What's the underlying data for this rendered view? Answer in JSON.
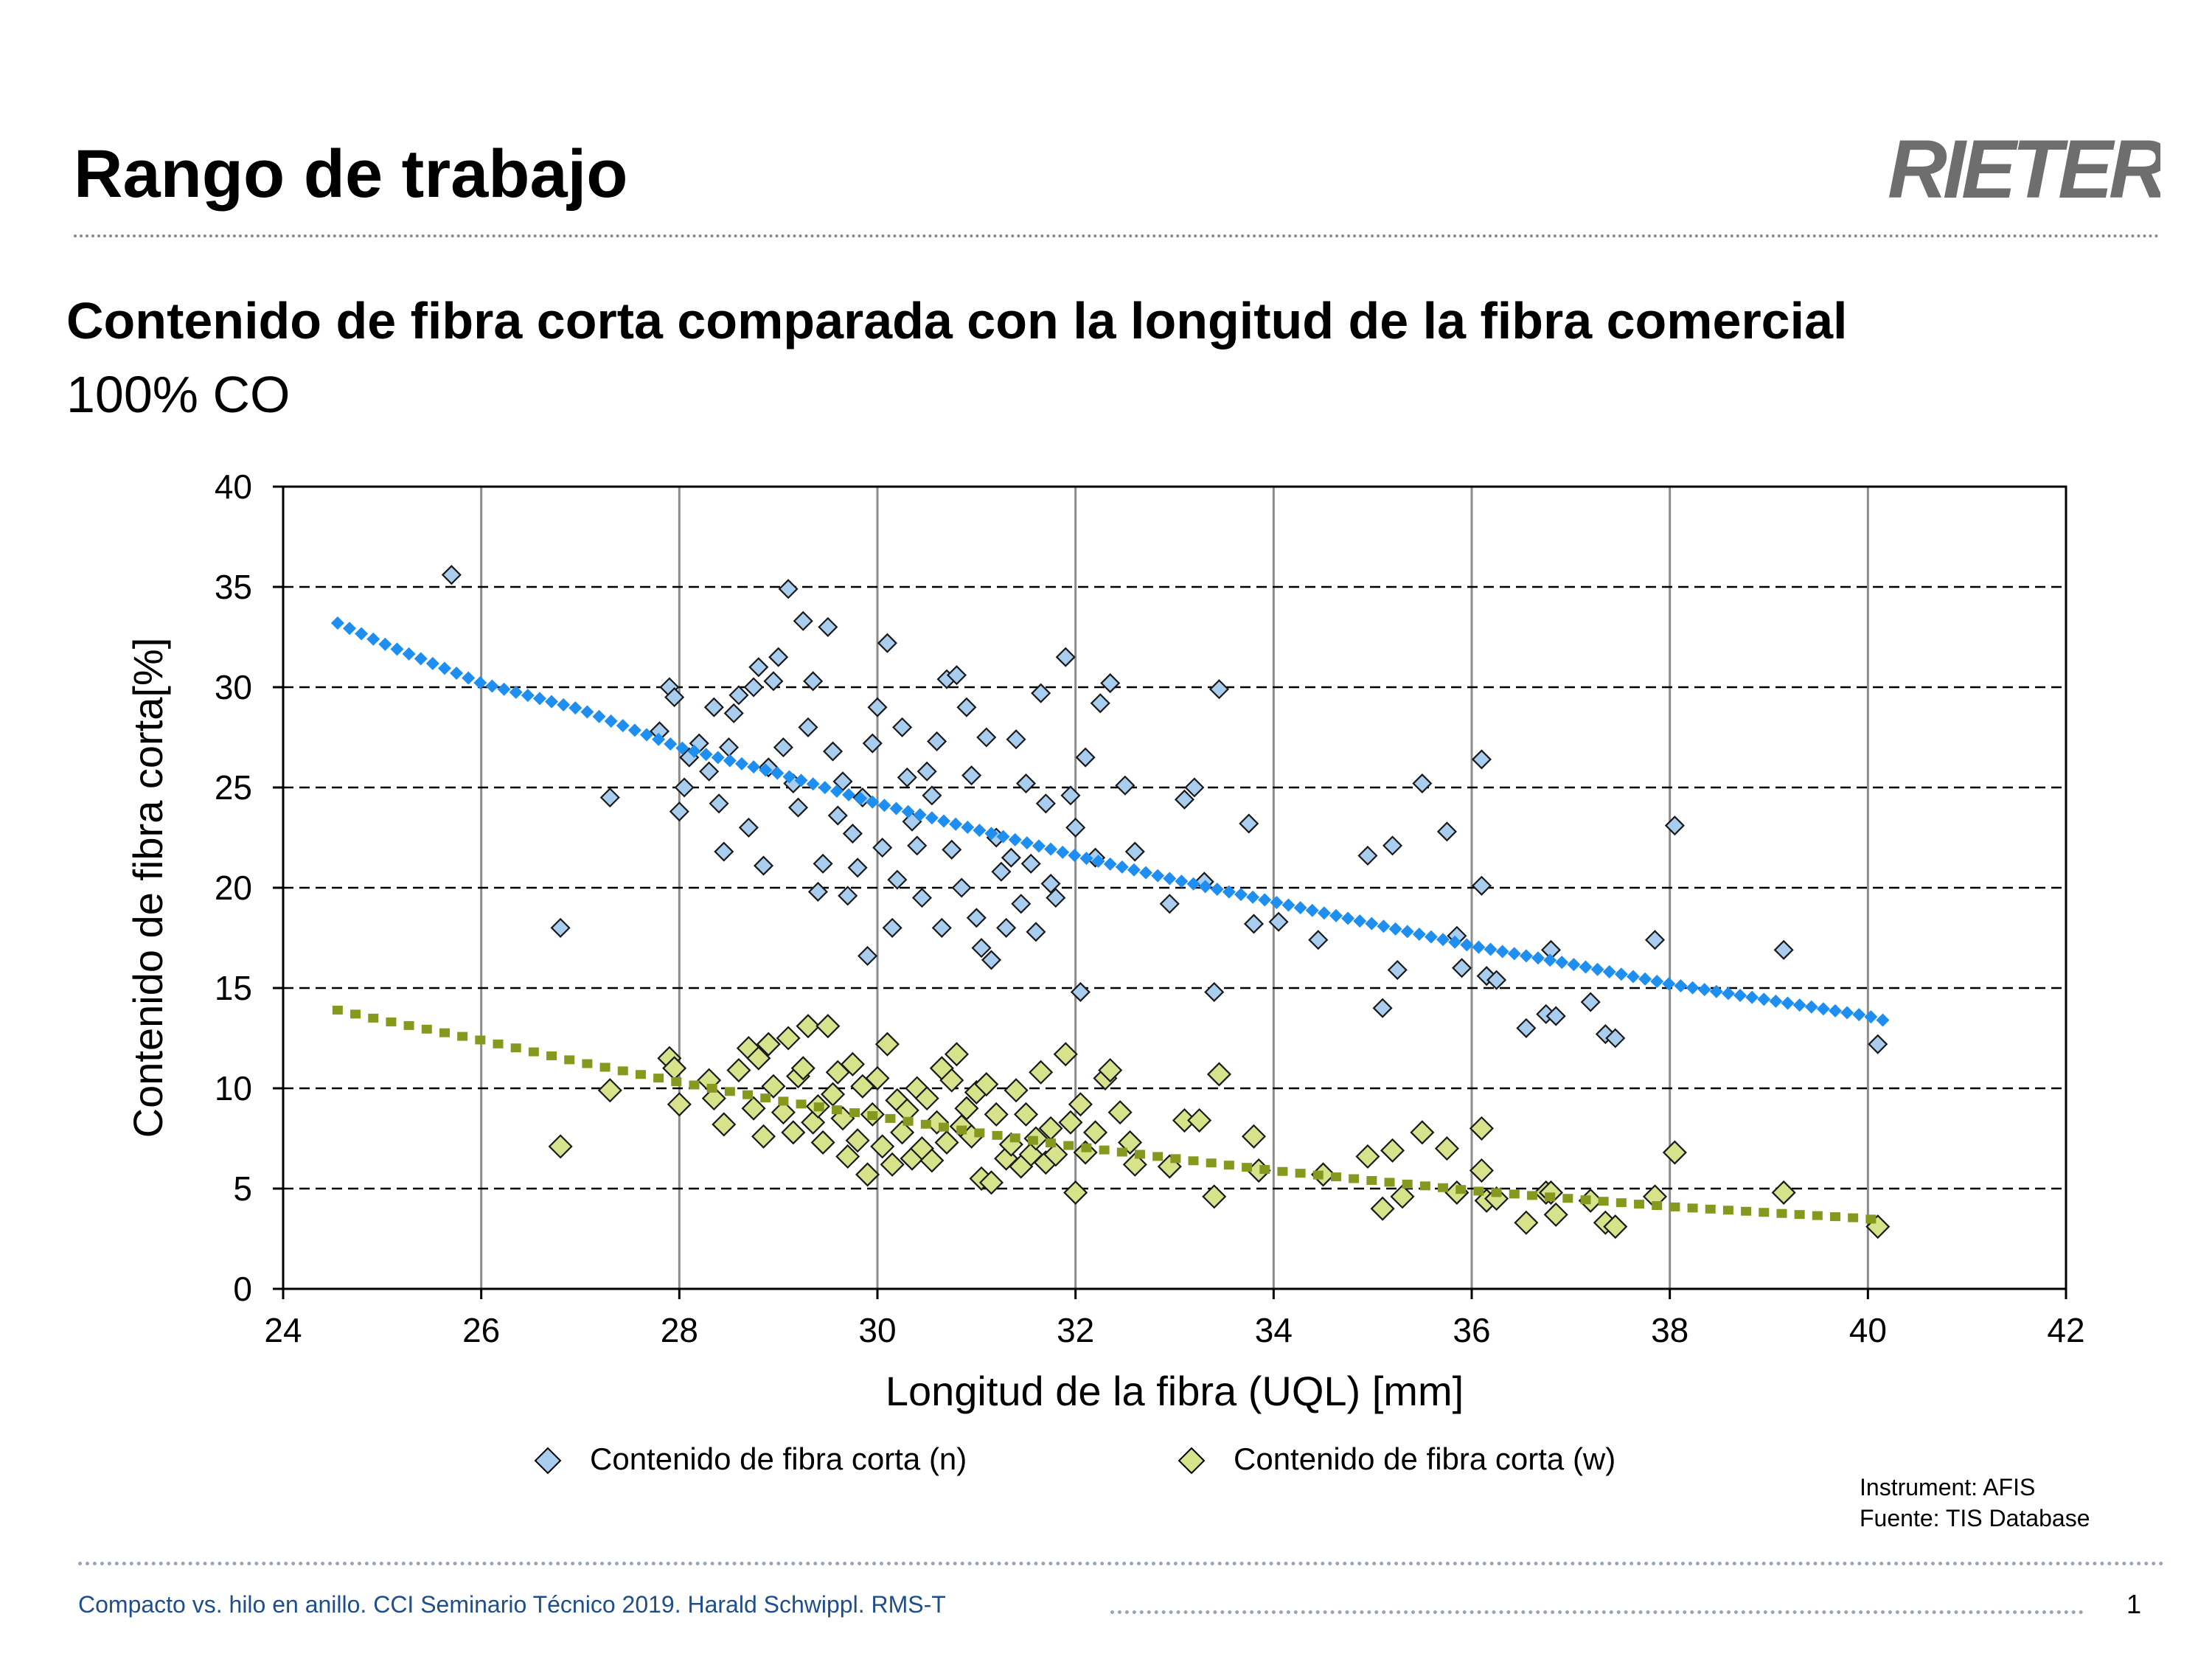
{
  "slide": {
    "title": "Rango de trabajo",
    "brand": "RIETER"
  },
  "chart_data": {
    "type": "scatter",
    "title": "Contenido de fibra corta comparada con la longitud de la fibra comercial",
    "subtitle": "100% CO",
    "xlabel": "Longitud de la fibra (UQL) [mm]",
    "ylabel": "Contenido de fibra corta[%]",
    "xlim": [
      24,
      42
    ],
    "ylim": [
      0,
      40
    ],
    "xticks": [
      24,
      26,
      28,
      30,
      32,
      34,
      36,
      38,
      40,
      42
    ],
    "yticks": [
      0,
      5,
      10,
      15,
      20,
      25,
      30,
      35,
      40
    ],
    "grid": "vertical solid gray, horizontal dashed black",
    "legend_position": "bottom",
    "series": [
      {
        "name": "Contenido de fibra corta (n)",
        "marker": "diamond",
        "color": "#a9cdee",
        "points": [
          [
            25.7,
            35.6
          ],
          [
            26.8,
            18.0
          ],
          [
            27.3,
            24.5
          ],
          [
            27.8,
            27.8
          ],
          [
            27.9,
            30.0
          ],
          [
            27.95,
            29.5
          ],
          [
            28.0,
            23.8
          ],
          [
            28.05,
            25.0
          ],
          [
            28.1,
            26.5
          ],
          [
            28.2,
            27.2
          ],
          [
            28.3,
            25.8
          ],
          [
            28.35,
            29.0
          ],
          [
            28.4,
            24.2
          ],
          [
            28.45,
            21.8
          ],
          [
            28.5,
            27.0
          ],
          [
            28.55,
            28.7
          ],
          [
            28.6,
            29.6
          ],
          [
            28.7,
            23.0
          ],
          [
            28.75,
            30.0
          ],
          [
            28.8,
            31.0
          ],
          [
            28.85,
            21.1
          ],
          [
            28.9,
            26.0
          ],
          [
            28.95,
            30.3
          ],
          [
            29.0,
            31.5
          ],
          [
            29.05,
            27.0
          ],
          [
            29.1,
            34.9
          ],
          [
            29.15,
            25.2
          ],
          [
            29.2,
            24.0
          ],
          [
            29.25,
            33.3
          ],
          [
            29.3,
            28.0
          ],
          [
            29.35,
            30.3
          ],
          [
            29.4,
            19.8
          ],
          [
            29.45,
            21.2
          ],
          [
            29.5,
            33.0
          ],
          [
            29.55,
            26.8
          ],
          [
            29.6,
            23.6
          ],
          [
            29.65,
            25.3
          ],
          [
            29.7,
            19.6
          ],
          [
            29.75,
            22.7
          ],
          [
            29.8,
            21.0
          ],
          [
            29.85,
            24.5
          ],
          [
            29.9,
            16.6
          ],
          [
            29.95,
            27.2
          ],
          [
            30.0,
            29.0
          ],
          [
            30.05,
            22.0
          ],
          [
            30.1,
            32.2
          ],
          [
            30.15,
            18.0
          ],
          [
            30.2,
            20.4
          ],
          [
            30.25,
            28.0
          ],
          [
            30.3,
            25.5
          ],
          [
            30.35,
            23.3
          ],
          [
            30.4,
            22.1
          ],
          [
            30.45,
            19.5
          ],
          [
            30.5,
            25.8
          ],
          [
            30.55,
            24.6
          ],
          [
            30.6,
            27.3
          ],
          [
            30.65,
            18.0
          ],
          [
            30.7,
            30.4
          ],
          [
            30.75,
            21.9
          ],
          [
            30.8,
            30.6
          ],
          [
            30.85,
            20.0
          ],
          [
            30.9,
            29.0
          ],
          [
            30.95,
            25.6
          ],
          [
            31.0,
            18.5
          ],
          [
            31.05,
            17.0
          ],
          [
            31.1,
            27.5
          ],
          [
            31.15,
            16.4
          ],
          [
            31.2,
            22.5
          ],
          [
            31.25,
            20.8
          ],
          [
            31.3,
            18.0
          ],
          [
            31.35,
            21.5
          ],
          [
            31.4,
            27.4
          ],
          [
            31.45,
            19.2
          ],
          [
            31.5,
            25.2
          ],
          [
            31.55,
            21.2
          ],
          [
            31.6,
            17.8
          ],
          [
            31.65,
            29.7
          ],
          [
            31.7,
            24.2
          ],
          [
            31.75,
            20.2
          ],
          [
            31.8,
            19.5
          ],
          [
            31.9,
            31.5
          ],
          [
            31.95,
            24.6
          ],
          [
            32.0,
            23.0
          ],
          [
            32.05,
            14.8
          ],
          [
            32.1,
            26.5
          ],
          [
            32.2,
            21.5
          ],
          [
            32.25,
            29.2
          ],
          [
            32.35,
            30.2
          ],
          [
            32.5,
            25.1
          ],
          [
            32.6,
            21.8
          ],
          [
            32.95,
            19.2
          ],
          [
            33.1,
            24.4
          ],
          [
            33.2,
            25.0
          ],
          [
            33.3,
            20.3
          ],
          [
            33.4,
            14.8
          ],
          [
            33.45,
            29.9
          ],
          [
            33.75,
            23.2
          ],
          [
            33.8,
            18.2
          ],
          [
            34.05,
            18.3
          ],
          [
            34.45,
            17.4
          ],
          [
            34.95,
            21.6
          ],
          [
            35.1,
            14.0
          ],
          [
            35.2,
            22.1
          ],
          [
            35.25,
            15.9
          ],
          [
            35.5,
            25.2
          ],
          [
            35.75,
            22.8
          ],
          [
            35.85,
            17.6
          ],
          [
            35.9,
            16.0
          ],
          [
            36.1,
            20.1
          ],
          [
            36.1,
            26.4
          ],
          [
            36.15,
            15.6
          ],
          [
            36.25,
            15.4
          ],
          [
            36.55,
            13.0
          ],
          [
            36.75,
            13.7
          ],
          [
            36.8,
            16.9
          ],
          [
            36.85,
            13.6
          ],
          [
            37.2,
            14.3
          ],
          [
            37.35,
            12.7
          ],
          [
            37.45,
            12.5
          ],
          [
            37.85,
            17.4
          ],
          [
            38.05,
            23.1
          ],
          [
            39.15,
            16.9
          ],
          [
            40.1,
            12.2
          ]
        ]
      },
      {
        "name": "Contenido de fibra corta (w)",
        "marker": "diamond",
        "color": "#d6e38a",
        "points": [
          [
            26.8,
            7.1
          ],
          [
            27.3,
            9.9
          ],
          [
            27.9,
            11.5
          ],
          [
            27.95,
            11.0
          ],
          [
            28.0,
            9.2
          ],
          [
            28.3,
            10.4
          ],
          [
            28.35,
            9.5
          ],
          [
            28.45,
            8.2
          ],
          [
            28.6,
            10.9
          ],
          [
            28.7,
            12.0
          ],
          [
            28.75,
            9.0
          ],
          [
            28.8,
            11.5
          ],
          [
            28.85,
            7.6
          ],
          [
            28.9,
            12.2
          ],
          [
            28.95,
            10.1
          ],
          [
            29.05,
            8.8
          ],
          [
            29.1,
            12.5
          ],
          [
            29.15,
            7.8
          ],
          [
            29.2,
            10.6
          ],
          [
            29.25,
            11.0
          ],
          [
            29.3,
            13.1
          ],
          [
            29.35,
            8.3
          ],
          [
            29.4,
            9.1
          ],
          [
            29.45,
            7.3
          ],
          [
            29.5,
            13.1
          ],
          [
            29.55,
            9.7
          ],
          [
            29.6,
            10.8
          ],
          [
            29.65,
            8.5
          ],
          [
            29.7,
            6.6
          ],
          [
            29.75,
            11.2
          ],
          [
            29.8,
            7.4
          ],
          [
            29.85,
            10.1
          ],
          [
            29.9,
            5.7
          ],
          [
            29.95,
            8.7
          ],
          [
            30.0,
            10.5
          ],
          [
            30.05,
            7.1
          ],
          [
            30.1,
            12.2
          ],
          [
            30.15,
            6.2
          ],
          [
            30.2,
            9.4
          ],
          [
            30.25,
            7.8
          ],
          [
            30.3,
            8.9
          ],
          [
            30.35,
            6.5
          ],
          [
            30.4,
            10.0
          ],
          [
            30.45,
            7.0
          ],
          [
            30.5,
            9.5
          ],
          [
            30.55,
            6.4
          ],
          [
            30.6,
            8.3
          ],
          [
            30.65,
            11.0
          ],
          [
            30.7,
            7.3
          ],
          [
            30.75,
            10.4
          ],
          [
            30.8,
            11.7
          ],
          [
            30.85,
            8.1
          ],
          [
            30.9,
            9.0
          ],
          [
            30.95,
            7.6
          ],
          [
            31.0,
            9.8
          ],
          [
            31.05,
            5.5
          ],
          [
            31.1,
            10.2
          ],
          [
            31.15,
            5.3
          ],
          [
            31.2,
            8.7
          ],
          [
            31.3,
            6.5
          ],
          [
            31.35,
            7.2
          ],
          [
            31.4,
            9.9
          ],
          [
            31.45,
            6.1
          ],
          [
            31.5,
            8.7
          ],
          [
            31.55,
            6.7
          ],
          [
            31.6,
            7.5
          ],
          [
            31.65,
            10.8
          ],
          [
            31.7,
            6.3
          ],
          [
            31.75,
            8.0
          ],
          [
            31.8,
            6.7
          ],
          [
            31.9,
            11.7
          ],
          [
            31.95,
            8.3
          ],
          [
            32.0,
            4.8
          ],
          [
            32.05,
            9.2
          ],
          [
            32.1,
            6.8
          ],
          [
            32.2,
            7.8
          ],
          [
            32.3,
            10.5
          ],
          [
            32.35,
            10.9
          ],
          [
            32.45,
            8.8
          ],
          [
            32.55,
            7.3
          ],
          [
            32.6,
            6.2
          ],
          [
            32.95,
            6.1
          ],
          [
            33.1,
            8.4
          ],
          [
            33.25,
            8.4
          ],
          [
            33.4,
            4.6
          ],
          [
            33.45,
            10.7
          ],
          [
            33.8,
            7.6
          ],
          [
            33.85,
            5.9
          ],
          [
            34.5,
            5.7
          ],
          [
            34.95,
            6.6
          ],
          [
            35.1,
            4.0
          ],
          [
            35.2,
            6.9
          ],
          [
            35.3,
            4.6
          ],
          [
            35.5,
            7.8
          ],
          [
            35.75,
            7.0
          ],
          [
            35.85,
            4.8
          ],
          [
            36.1,
            8.0
          ],
          [
            36.1,
            5.9
          ],
          [
            36.15,
            4.4
          ],
          [
            36.25,
            4.5
          ],
          [
            36.55,
            3.3
          ],
          [
            36.75,
            4.8
          ],
          [
            36.8,
            4.8
          ],
          [
            36.85,
            3.7
          ],
          [
            37.2,
            4.4
          ],
          [
            37.35,
            3.3
          ],
          [
            37.45,
            3.1
          ],
          [
            37.85,
            4.6
          ],
          [
            38.05,
            6.8
          ],
          [
            39.15,
            4.8
          ],
          [
            40.1,
            3.1
          ]
        ]
      },
      {
        "name": "",
        "type": "trendline",
        "color": "#1e8ff0",
        "x": [
          24.55,
          25,
          26,
          27,
          28,
          29,
          30,
          31,
          32,
          33,
          34,
          35,
          36,
          37,
          38,
          39,
          40,
          40.15
        ],
        "values": [
          33.2,
          32.2,
          30.2,
          28.9,
          27.0,
          25.7,
          24.2,
          22.9,
          21.6,
          20.4,
          19.3,
          18.2,
          17.1,
          16.2,
          15.2,
          14.4,
          13.6,
          13.4
        ]
      },
      {
        "name": "",
        "type": "trendline",
        "color": "#86991e",
        "x": [
          24.55,
          25,
          26,
          27,
          28,
          29,
          30,
          31,
          32,
          33,
          34,
          35,
          36,
          37,
          38,
          39,
          40,
          40.15
        ],
        "values": [
          13.9,
          13.4,
          12.4,
          11.3,
          10.3,
          9.4,
          8.6,
          7.8,
          7.1,
          6.5,
          5.9,
          5.4,
          4.9,
          4.5,
          4.1,
          3.8,
          3.5,
          3.4
        ]
      }
    ],
    "annotations": [
      "Instrument: AFIS",
      "Fuente: TIS Database"
    ]
  },
  "footer": {
    "text": "Compacto vs. hilo en anillo. CCI Seminario Técnico 2019. Harald Schwippl. RMS-T",
    "page_number": "1"
  },
  "colors": {
    "footer_text": "#1f4e8c",
    "grid_vertical": "#8c8c8c",
    "grid_horizontal": "#000000"
  }
}
